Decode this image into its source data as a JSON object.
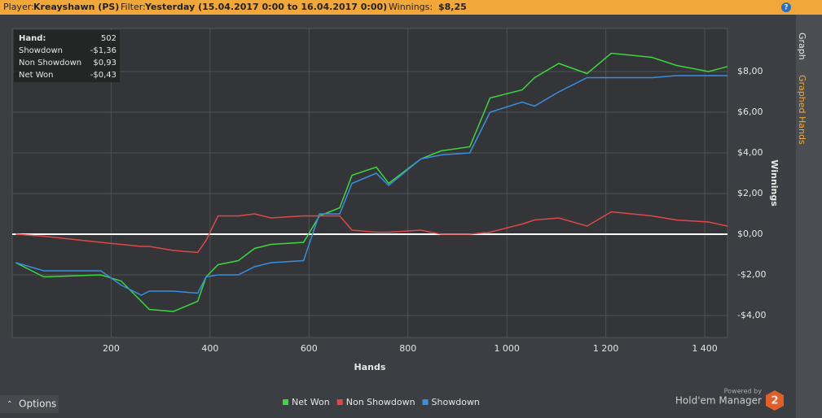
{
  "header": {
    "player_label": "Player:",
    "player": "Kreayshawn (PS)",
    "filter_label": "Filter:",
    "filter": "Yesterday (15.04.2017 0:00 to 16.04.2017 0:00)",
    "winnings_label": "Winnings:",
    "winnings": "$8,25"
  },
  "tooltip": {
    "rows": [
      [
        "Hand:",
        "502"
      ],
      [
        "Showdown",
        "-$1,36"
      ],
      [
        "Non Showdown",
        "$0,93"
      ],
      [
        "Net Won",
        "-$0,43"
      ]
    ]
  },
  "tabs": [
    "Graph",
    "Graphed Hands"
  ],
  "options": "Options",
  "branding": {
    "powered": "Powered by",
    "product": "Hold'em Manager",
    "badge": "2"
  },
  "chart_data": {
    "type": "line",
    "xlabel": "Hands",
    "ylabel": "Winnings",
    "grid": true,
    "x": [
      7,
      64,
      179,
      220,
      261,
      277,
      326,
      375,
      392,
      416,
      457,
      490,
      523,
      589,
      621,
      662,
      687,
      736,
      761,
      826,
      867,
      925,
      966,
      1031,
      1056,
      1105,
      1162,
      1211,
      1293,
      1343,
      1408,
      1446
    ],
    "series": [
      {
        "name": "Net Won",
        "color": "#3dd63d",
        "values": [
          -1.4,
          -2.1,
          -2.0,
          -2.3,
          -3.3,
          -3.7,
          -3.8,
          -3.3,
          -2.1,
          -1.5,
          -1.3,
          -0.7,
          -0.5,
          -0.4,
          0.9,
          1.3,
          2.9,
          3.3,
          2.5,
          3.7,
          4.1,
          4.3,
          6.7,
          7.1,
          7.7,
          8.4,
          7.9,
          8.9,
          8.7,
          8.3,
          8.0,
          8.25
        ]
      },
      {
        "name": "Non Showdown",
        "color": "#e04848",
        "values": [
          0,
          -0.1,
          -0.4,
          -0.5,
          -0.6,
          -0.6,
          -0.8,
          -0.9,
          -0.3,
          0.9,
          0.9,
          1.0,
          0.8,
          0.9,
          0.9,
          0.9,
          0.2,
          0.1,
          0.1,
          0.2,
          0.0,
          0.0,
          0.1,
          0.5,
          0.7,
          0.8,
          0.4,
          1.1,
          0.9,
          0.7,
          0.6,
          0.4
        ]
      },
      {
        "name": "Showdown",
        "color": "#3a8ee0",
        "values": [
          -1.4,
          -1.8,
          -1.8,
          -2.5,
          -3.0,
          -2.8,
          -2.8,
          -2.9,
          -2.1,
          -2.0,
          -2.0,
          -1.6,
          -1.4,
          -1.3,
          1.0,
          1.0,
          2.5,
          3.0,
          2.4,
          3.7,
          3.9,
          4.0,
          6.0,
          6.5,
          6.3,
          7.0,
          7.7,
          7.7,
          7.7,
          7.8,
          7.8,
          7.8
        ]
      }
    ],
    "xlim": [
      0,
      1446
    ],
    "ylim": [
      -5.08,
      10.12
    ],
    "xticks": [
      200,
      400,
      600,
      800,
      {
        "value": 1000,
        "label": "1 000"
      },
      {
        "value": 1200,
        "label": "1 200"
      },
      {
        "value": 1400,
        "label": "1 400"
      }
    ],
    "yticks": [
      {
        "value": -4,
        "label": "-$4,00"
      },
      {
        "value": -2,
        "label": "-$2,00"
      },
      {
        "value": 0,
        "label": "$0,00"
      },
      {
        "value": 2,
        "label": "$2,00"
      },
      {
        "value": 4,
        "label": "$4,00"
      },
      {
        "value": 6,
        "label": "$6,00"
      },
      {
        "value": 8,
        "label": "$8,00"
      }
    ]
  }
}
